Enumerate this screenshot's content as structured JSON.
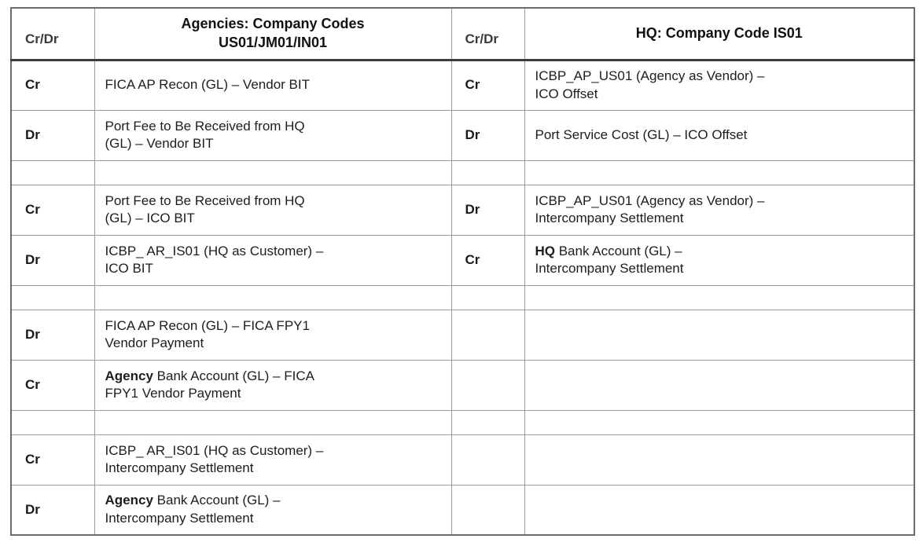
{
  "table": {
    "header": {
      "agency_crdr": "Cr/Dr",
      "agency_title_line1": "Agencies: Company Codes",
      "agency_title_line2": "US01/JM01/IN01",
      "hq_crdr": "Cr/Dr",
      "hq_title": "HQ: Company Code IS01"
    },
    "colors": {
      "border_inner": "#9a9a9a",
      "border_outer": "#6b6b6b",
      "header_rule": "#3d3d3d",
      "text": "#1d1d1d"
    },
    "rows": [
      {
        "kind": "entry",
        "agency": {
          "crdr": "Cr",
          "lines": [
            [
              {
                "text": "FICA AP Recon (GL) – Vendor BIT",
                "bold": false
              }
            ]
          ]
        },
        "hq": {
          "crdr": "Cr",
          "lines": [
            [
              {
                "text": "ICBP_AP_US01 (Agency as Vendor) –",
                "bold": false
              }
            ],
            [
              {
                "text": "ICO Offset",
                "bold": false
              }
            ]
          ]
        }
      },
      {
        "kind": "entry",
        "agency": {
          "crdr": "Dr",
          "lines": [
            [
              {
                "text": "Port Fee to Be Received from HQ",
                "bold": false
              }
            ],
            [
              {
                "text": "(GL) – Vendor BIT",
                "bold": false
              }
            ]
          ]
        },
        "hq": {
          "crdr": "Dr",
          "lines": [
            [
              {
                "text": "Port Service Cost (GL) – ICO Offset",
                "bold": false
              }
            ]
          ]
        }
      },
      {
        "kind": "spacer"
      },
      {
        "kind": "entry",
        "agency": {
          "crdr": "Cr",
          "lines": [
            [
              {
                "text": "Port Fee to Be Received from HQ",
                "bold": false
              }
            ],
            [
              {
                "text": "(GL) – ICO BIT",
                "bold": false
              }
            ]
          ]
        },
        "hq": {
          "crdr": "Dr",
          "lines": [
            [
              {
                "text": "ICBP_AP_US01 (Agency as Vendor) –",
                "bold": false
              }
            ],
            [
              {
                "text": "Intercompany Settlement",
                "bold": false
              }
            ]
          ]
        }
      },
      {
        "kind": "entry",
        "agency": {
          "crdr": "Dr",
          "lines": [
            [
              {
                "text": "ICBP_ AR_IS01 (HQ as Customer) –",
                "bold": false
              }
            ],
            [
              {
                "text": "ICO BIT",
                "bold": false
              }
            ]
          ]
        },
        "hq": {
          "crdr": "Cr",
          "lines": [
            [
              {
                "text": "HQ",
                "bold": true
              },
              {
                "text": " Bank Account (GL) –",
                "bold": false
              }
            ],
            [
              {
                "text": "Intercompany Settlement",
                "bold": false
              }
            ]
          ]
        }
      },
      {
        "kind": "spacer"
      },
      {
        "kind": "entry",
        "agency": {
          "crdr": "Dr",
          "lines": [
            [
              {
                "text": "FICA AP Recon (GL) – FICA FPY1",
                "bold": false
              }
            ],
            [
              {
                "text": "Vendor Payment",
                "bold": false
              }
            ]
          ]
        },
        "hq": {
          "crdr": "",
          "lines": []
        }
      },
      {
        "kind": "entry",
        "agency": {
          "crdr": "Cr",
          "lines": [
            [
              {
                "text": "Agency",
                "bold": true
              },
              {
                "text": " Bank Account (GL) – FICA",
                "bold": false
              }
            ],
            [
              {
                "text": "FPY1 Vendor Payment",
                "bold": false
              }
            ]
          ]
        },
        "hq": {
          "crdr": "",
          "lines": []
        }
      },
      {
        "kind": "spacer"
      },
      {
        "kind": "entry",
        "agency": {
          "crdr": "Cr",
          "lines": [
            [
              {
                "text": "ICBP_ AR_IS01 (HQ as Customer) –",
                "bold": false
              }
            ],
            [
              {
                "text": "Intercompany Settlement",
                "bold": false
              }
            ]
          ]
        },
        "hq": {
          "crdr": "",
          "lines": []
        }
      },
      {
        "kind": "entry",
        "agency": {
          "crdr": "Dr",
          "lines": [
            [
              {
                "text": "Agency",
                "bold": true
              },
              {
                "text": " Bank Account (GL) –",
                "bold": false
              }
            ],
            [
              {
                "text": "Intercompany Settlement",
                "bold": false
              }
            ]
          ]
        },
        "hq": {
          "crdr": "",
          "lines": []
        }
      }
    ]
  }
}
